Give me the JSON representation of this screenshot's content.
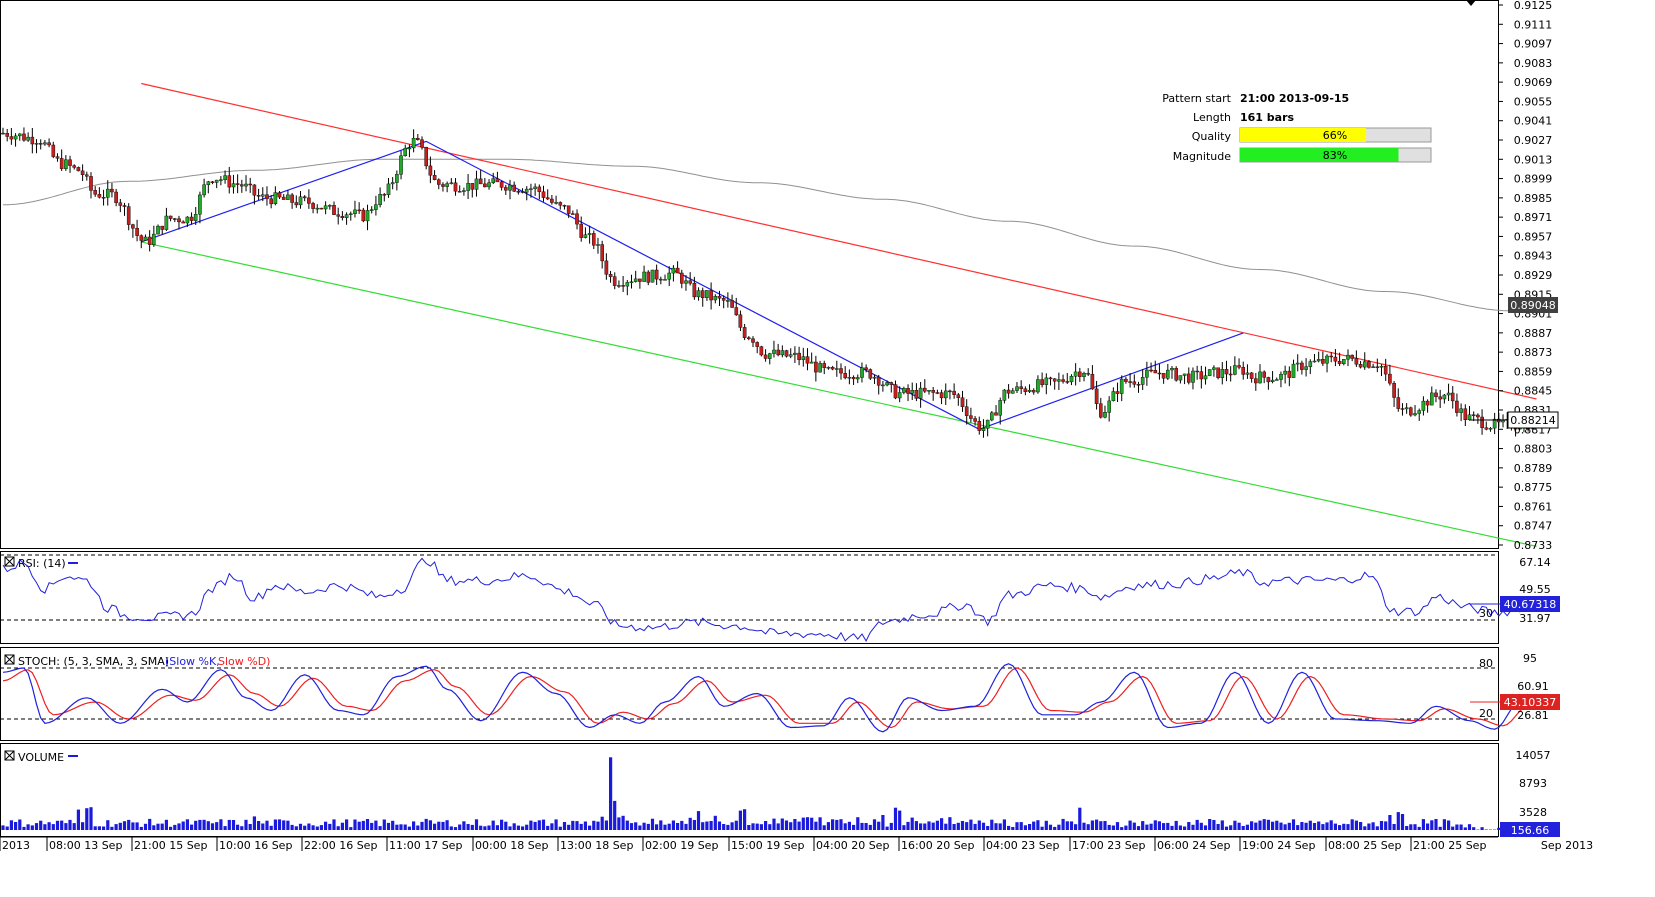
{
  "colors": {
    "bull": "#22a82a",
    "bear": "#c81e1e",
    "resistance": "#ff3030",
    "support": "#33dd33",
    "pattern": "#2020ee",
    "ma": "#909090",
    "rsi": "#2020dd",
    "stoch_k": "#2020dd",
    "stoch_d": "#ee2020",
    "volume": "#1a1add",
    "quality_bar": "#ffff00",
    "magnitude_bar": "#22ee22",
    "price_badge": "#404040",
    "badge_blue": "#2222dd",
    "badge_red": "#dd2222"
  },
  "pattern_info": {
    "start_label": "Pattern start",
    "start_value": "21:00 2013-09-15",
    "length_label": "Length",
    "length_value": "161 bars",
    "quality_label": "Quality",
    "quality_text": "66%",
    "quality_pct": 66,
    "magnitude_label": "Magnitude",
    "magnitude_text": "83%",
    "magnitude_pct": 83
  },
  "price_axis": {
    "ticks": [
      "0.9125",
      "0.9111",
      "0.9097",
      "0.9083",
      "0.9069",
      "0.9055",
      "0.9041",
      "0.9027",
      "0.9013",
      "0.8999",
      "0.8985",
      "0.8971",
      "0.8957",
      "0.8943",
      "0.8929",
      "0.8915",
      "0.8901",
      "0.8887",
      "0.8873",
      "0.8859",
      "0.8845",
      "0.8831",
      "0.8817",
      "0.8803",
      "0.8789",
      "0.8775",
      "0.8761",
      "0.8747",
      "0.8733"
    ],
    "ma_badge": "0.89048",
    "price_badge": "0.88214"
  },
  "rsi_panel": {
    "title": "RSI: (14)",
    "ticks": [
      "67.14",
      "49.55",
      "31.97"
    ],
    "level_label": "30",
    "badge": "40.67318"
  },
  "stoch_panel": {
    "title": "STOCH: (5, 3, SMA, 3, SMA)",
    "k_label": "(Slow %K,",
    "d_label": "Slow %D)",
    "ticks": [
      "95",
      "60.91",
      "26.81"
    ],
    "level_high": "80",
    "level_low": "20",
    "badge": "43.10337"
  },
  "volume_panel": {
    "title": "VOLUME",
    "ticks": [
      "14057",
      "8793",
      "3528"
    ],
    "badge": "156.66"
  },
  "time_axis": {
    "labels": [
      "2013",
      "08:00 13 Sep",
      "21:00 15 Sep",
      "10:00 16 Sep",
      "22:00 16 Sep",
      "11:00 17 Sep",
      "00:00 18 Sep",
      "13:00 18 Sep",
      "02:00 19 Sep",
      "15:00 19 Sep",
      "04:00 20 Sep",
      "16:00 20 Sep",
      "04:00 23 Sep",
      "17:00 23 Sep",
      "06:00 24 Sep",
      "19:00 24 Sep",
      "08:00 25 Sep",
      "21:00 25 Sep",
      "Sep 2013"
    ]
  },
  "chart_data": {
    "type": "candlestick",
    "symbol_timeframe": "hourly",
    "y_range": [
      0.8733,
      0.9125
    ],
    "anchors_close": [
      [
        0,
        0.9032
      ],
      [
        8,
        0.9028
      ],
      [
        14,
        0.901
      ],
      [
        18,
        0.9005
      ],
      [
        22,
        0.8988
      ],
      [
        26,
        0.8987
      ],
      [
        34,
        0.8953
      ],
      [
        40,
        0.897
      ],
      [
        44,
        0.897
      ],
      [
        50,
        0.9
      ],
      [
        56,
        0.8995
      ],
      [
        62,
        0.8985
      ],
      [
        72,
        0.8982
      ],
      [
        80,
        0.8975
      ],
      [
        86,
        0.8972
      ],
      [
        90,
        0.8985
      ],
      [
        98,
        0.9026
      ],
      [
        104,
        0.8995
      ],
      [
        110,
        0.8994
      ],
      [
        118,
        0.8995
      ],
      [
        126,
        0.8992
      ],
      [
        134,
        0.8977
      ],
      [
        140,
        0.8955
      ],
      [
        146,
        0.8925
      ],
      [
        154,
        0.8928
      ],
      [
        160,
        0.893
      ],
      [
        166,
        0.8915
      ],
      [
        172,
        0.891
      ],
      [
        178,
        0.8885
      ],
      [
        182,
        0.8872
      ],
      [
        188,
        0.887
      ],
      [
        198,
        0.8858
      ],
      [
        206,
        0.8858
      ],
      [
        214,
        0.8843
      ],
      [
        220,
        0.8843
      ],
      [
        226,
        0.8843
      ],
      [
        234,
        0.8818
      ],
      [
        240,
        0.8845
      ],
      [
        250,
        0.885
      ],
      [
        258,
        0.886
      ],
      [
        262,
        0.883
      ],
      [
        268,
        0.8852
      ],
      [
        276,
        0.8858
      ],
      [
        284,
        0.8855
      ],
      [
        290,
        0.8858
      ],
      [
        296,
        0.886
      ],
      [
        298,
        0.8855
      ],
      [
        304,
        0.8855
      ],
      [
        312,
        0.8865
      ],
      [
        320,
        0.8868
      ],
      [
        328,
        0.8865
      ],
      [
        334,
        0.883
      ],
      [
        344,
        0.8842
      ],
      [
        350,
        0.8825
      ],
      [
        356,
        0.882
      ],
      [
        366,
        0.8822
      ]
    ],
    "ma_anchors": [
      [
        0,
        0.898
      ],
      [
        30,
        0.8997
      ],
      [
        60,
        0.9005
      ],
      [
        90,
        0.9013
      ],
      [
        120,
        0.9013
      ],
      [
        150,
        0.9008
      ],
      [
        180,
        0.8996
      ],
      [
        210,
        0.8984
      ],
      [
        240,
        0.8968
      ],
      [
        270,
        0.895
      ],
      [
        300,
        0.8933
      ],
      [
        330,
        0.8917
      ],
      [
        360,
        0.8903
      ],
      [
        366,
        0.8902
      ]
    ],
    "channel": {
      "resistance": [
        [
          33,
          0.9068
        ],
        [
          366,
          0.8839
        ]
      ],
      "support": [
        [
          33,
          0.8953
        ],
        [
          366,
          0.8732
        ]
      ]
    },
    "zigzag": [
      [
        33,
        0.8953
      ],
      [
        101,
        0.9026
      ],
      [
        233,
        0.8817
      ],
      [
        296,
        0.8887
      ]
    ],
    "rsi_range": [
      17,
      72
    ],
    "rsi_anchors": [
      [
        0,
        62
      ],
      [
        5,
        66
      ],
      [
        10,
        50
      ],
      [
        15,
        58
      ],
      [
        20,
        55
      ],
      [
        25,
        38
      ],
      [
        30,
        33
      ],
      [
        36,
        32
      ],
      [
        45,
        34
      ],
      [
        50,
        50
      ],
      [
        55,
        58
      ],
      [
        60,
        44
      ],
      [
        65,
        52
      ],
      [
        72,
        48
      ],
      [
        80,
        52
      ],
      [
        90,
        45
      ],
      [
        95,
        50
      ],
      [
        101,
        68
      ],
      [
        106,
        55
      ],
      [
        115,
        55
      ],
      [
        125,
        58
      ],
      [
        135,
        48
      ],
      [
        141,
        40
      ],
      [
        147,
        27
      ],
      [
        155,
        26
      ],
      [
        165,
        29
      ],
      [
        175,
        27
      ],
      [
        185,
        22
      ],
      [
        195,
        22
      ],
      [
        205,
        19
      ],
      [
        211,
        30
      ],
      [
        220,
        34
      ],
      [
        230,
        40
      ],
      [
        235,
        30
      ],
      [
        240,
        46
      ],
      [
        250,
        52
      ],
      [
        258,
        50
      ],
      [
        262,
        45
      ],
      [
        270,
        52
      ],
      [
        280,
        53
      ],
      [
        288,
        56
      ],
      [
        296,
        60
      ],
      [
        300,
        54
      ],
      [
        310,
        55
      ],
      [
        318,
        55
      ],
      [
        326,
        58
      ],
      [
        332,
        36
      ],
      [
        338,
        36
      ],
      [
        342,
        45
      ],
      [
        350,
        38
      ],
      [
        356,
        35
      ],
      [
        366,
        40
      ]
    ],
    "stoch_k_anchors": [
      [
        0,
        75
      ],
      [
        5,
        80
      ],
      [
        10,
        15
      ],
      [
        20,
        45
      ],
      [
        28,
        15
      ],
      [
        38,
        55
      ],
      [
        44,
        40
      ],
      [
        52,
        78
      ],
      [
        58,
        45
      ],
      [
        64,
        30
      ],
      [
        72,
        72
      ],
      [
        80,
        30
      ],
      [
        86,
        25
      ],
      [
        94,
        70
      ],
      [
        101,
        82
      ],
      [
        106,
        55
      ],
      [
        114,
        18
      ],
      [
        124,
        75
      ],
      [
        132,
        50
      ],
      [
        140,
        10
      ],
      [
        146,
        25
      ],
      [
        152,
        15
      ],
      [
        158,
        40
      ],
      [
        166,
        70
      ],
      [
        172,
        35
      ],
      [
        180,
        50
      ],
      [
        188,
        10
      ],
      [
        196,
        12
      ],
      [
        202,
        45
      ],
      [
        210,
        5
      ],
      [
        216,
        45
      ],
      [
        224,
        30
      ],
      [
        232,
        35
      ],
      [
        240,
        85
      ],
      [
        248,
        25
      ],
      [
        256,
        25
      ],
      [
        262,
        40
      ],
      [
        270,
        75
      ],
      [
        278,
        10
      ],
      [
        286,
        15
      ],
      [
        294,
        75
      ],
      [
        302,
        15
      ],
      [
        310,
        75
      ],
      [
        318,
        20
      ],
      [
        328,
        18
      ],
      [
        336,
        15
      ],
      [
        342,
        35
      ],
      [
        350,
        18
      ],
      [
        356,
        8
      ],
      [
        362,
        40
      ],
      [
        366,
        35
      ]
    ],
    "stoch_d_anchors": [
      [
        0,
        65
      ],
      [
        6,
        78
      ],
      [
        12,
        25
      ],
      [
        22,
        40
      ],
      [
        30,
        20
      ],
      [
        40,
        48
      ],
      [
        46,
        42
      ],
      [
        54,
        72
      ],
      [
        60,
        50
      ],
      [
        66,
        35
      ],
      [
        74,
        68
      ],
      [
        82,
        35
      ],
      [
        88,
        30
      ],
      [
        96,
        65
      ],
      [
        103,
        78
      ],
      [
        108,
        58
      ],
      [
        116,
        25
      ],
      [
        126,
        70
      ],
      [
        134,
        52
      ],
      [
        142,
        15
      ],
      [
        148,
        28
      ],
      [
        154,
        20
      ],
      [
        160,
        38
      ],
      [
        168,
        65
      ],
      [
        174,
        40
      ],
      [
        182,
        48
      ],
      [
        190,
        15
      ],
      [
        198,
        15
      ],
      [
        204,
        40
      ],
      [
        212,
        10
      ],
      [
        218,
        40
      ],
      [
        226,
        32
      ],
      [
        234,
        35
      ],
      [
        242,
        80
      ],
      [
        250,
        30
      ],
      [
        258,
        28
      ],
      [
        264,
        40
      ],
      [
        272,
        70
      ],
      [
        280,
        15
      ],
      [
        288,
        18
      ],
      [
        296,
        70
      ],
      [
        304,
        20
      ],
      [
        312,
        70
      ],
      [
        320,
        25
      ],
      [
        330,
        20
      ],
      [
        338,
        18
      ],
      [
        344,
        32
      ],
      [
        352,
        20
      ],
      [
        358,
        12
      ],
      [
        364,
        35
      ],
      [
        366,
        37
      ]
    ],
    "volume_range": [
      0,
      16500
    ],
    "volume_spikes": [
      [
        18,
        4200
      ],
      [
        20,
        4500
      ],
      [
        21,
        4700
      ],
      [
        60,
        2800
      ],
      [
        145,
        15000
      ],
      [
        146,
        6000
      ],
      [
        166,
        3900
      ],
      [
        176,
        4000
      ],
      [
        177,
        4300
      ],
      [
        210,
        3100
      ],
      [
        213,
        4600
      ],
      [
        214,
        4000
      ],
      [
        257,
        4600
      ],
      [
        331,
        3100
      ],
      [
        333,
        3700
      ],
      [
        334,
        3300
      ]
    ]
  }
}
